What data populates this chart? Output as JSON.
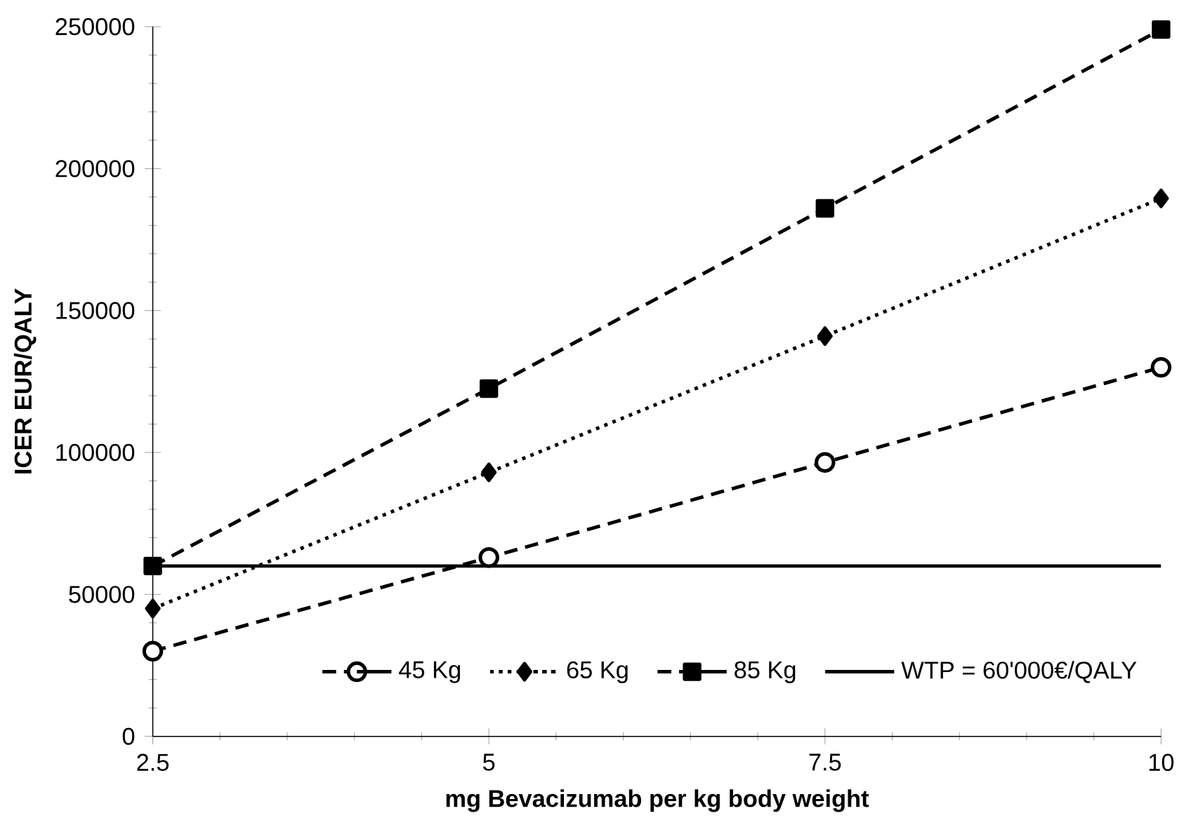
{
  "chart_data": {
    "type": "line",
    "xlabel": "mg Bevacizumab per kg body weight",
    "ylabel": "ICER EUR/QALY",
    "x": [
      2.5,
      5,
      7.5,
      10
    ],
    "series": [
      {
        "name": "45 Kg",
        "color": "#000000",
        "marker": "circle",
        "line_style": "dashed",
        "values": [
          30000,
          63000,
          96500,
          130000
        ]
      },
      {
        "name": "65 Kg",
        "color": "#000000",
        "marker": "diamond",
        "line_style": "dotted",
        "values": [
          45000,
          93000,
          141000,
          189500
        ]
      },
      {
        "name": "85 Kg",
        "color": "#000000",
        "marker": "square",
        "line_style": "dashed",
        "values": [
          60000,
          122500,
          186000,
          249000
        ]
      }
    ],
    "ref_lines": [
      {
        "axis": "y",
        "value": 60000,
        "label": "WTP = 60'000€/QALY",
        "color": "#000000",
        "line_style": "solid"
      }
    ],
    "xlim": [
      2.5,
      10
    ],
    "ylim": [
      0,
      250000
    ],
    "xticks": [
      2.5,
      5,
      7.5,
      10
    ],
    "yticks": [
      0,
      50000,
      100000,
      150000,
      200000,
      250000
    ],
    "grid": false,
    "legend": "bottom"
  }
}
